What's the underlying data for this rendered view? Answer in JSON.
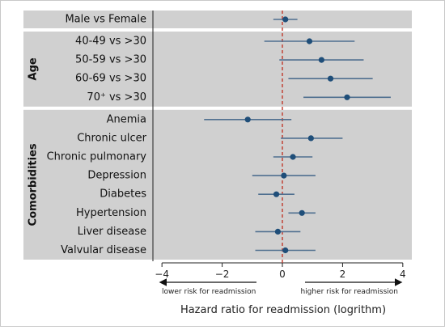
{
  "chart_data": {
    "type": "forest",
    "xlabel": "Hazard ratio for readmission (logrithm)",
    "xlim": [
      -4.3,
      4.3
    ],
    "xticks": [
      -4,
      -2,
      0,
      2,
      4
    ],
    "xtick_labels": [
      "−4",
      "−2",
      "0",
      "2",
      "4"
    ],
    "reference_line": 0,
    "arrow_left_label": "lower risk for readmission",
    "arrow_right_label": "higher risk for readmission",
    "groups": [
      {
        "label": "",
        "rows": [
          {
            "label": "Male vs Female",
            "estimate": 0.1,
            "lower": -0.3,
            "upper": 0.5
          }
        ]
      },
      {
        "label": "Age",
        "rows": [
          {
            "label": "40-49 vs >30",
            "estimate": 0.9,
            "lower": -0.6,
            "upper": 2.4
          },
          {
            "label": "50-59 vs >30",
            "estimate": 1.3,
            "lower": -0.1,
            "upper": 2.7
          },
          {
            "label": "60-69 vs >30",
            "estimate": 1.6,
            "lower": 0.2,
            "upper": 3.0
          },
          {
            "label": "70⁺ vs >30",
            "estimate": 2.15,
            "lower": 0.7,
            "upper": 3.6
          }
        ]
      },
      {
        "label": "Comorbidities",
        "rows": [
          {
            "label": "Anemia",
            "estimate": -1.15,
            "lower": -2.6,
            "upper": 0.3
          },
          {
            "label": "Chronic ulcer",
            "estimate": 0.95,
            "lower": -0.05,
            "upper": 2.0
          },
          {
            "label": "Chronic pulmonary",
            "estimate": 0.35,
            "lower": -0.3,
            "upper": 1.0
          },
          {
            "label": "Depression",
            "estimate": 0.05,
            "lower": -1.0,
            "upper": 1.1
          },
          {
            "label": "Diabetes",
            "estimate": -0.2,
            "lower": -0.8,
            "upper": 0.4
          },
          {
            "label": "Hypertension",
            "estimate": 0.65,
            "lower": 0.2,
            "upper": 1.1
          },
          {
            "label": "Liver disease",
            "estimate": -0.15,
            "lower": -0.9,
            "upper": 0.6
          },
          {
            "label": "Valvular disease",
            "estimate": 0.1,
            "lower": -0.9,
            "upper": 1.1
          }
        ]
      }
    ],
    "colors": {
      "panel": "#d0d0d0",
      "point": "#1f4e79",
      "line": "#4f6f8f",
      "reference": "#c0392b"
    }
  }
}
